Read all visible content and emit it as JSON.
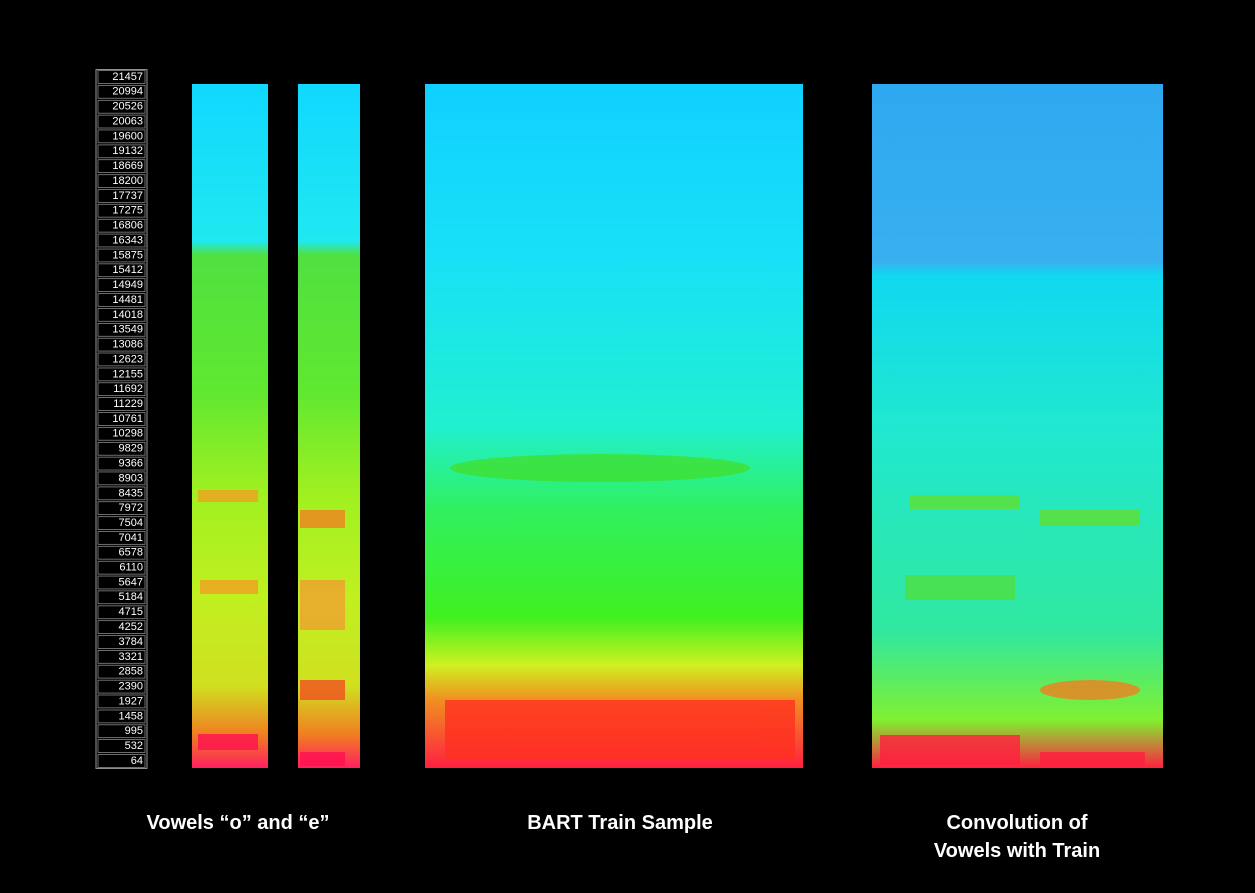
{
  "chart_data": {
    "type": "spectrogram",
    "ylim": [
      64,
      21457
    ],
    "yticks": [
      64,
      532,
      995,
      1458,
      1927,
      2390,
      2858,
      3321,
      3784,
      4252,
      4715,
      5184,
      5647,
      6110,
      6578,
      7041,
      7504,
      7972,
      8435,
      8903,
      9366,
      9829,
      10298,
      10761,
      11229,
      11692,
      12155,
      12623,
      13086,
      13549,
      14018,
      14481,
      14949,
      15412,
      15875,
      16343,
      16806,
      17275,
      17737,
      18200,
      18669,
      19132,
      19600,
      20063,
      20526,
      20994,
      21457
    ],
    "captions": [
      [
        "Vowels “o” and “e”"
      ],
      [
        "BART Train Sample"
      ],
      [
        "Convolution of",
        "Vowels with Train"
      ]
    ]
  }
}
